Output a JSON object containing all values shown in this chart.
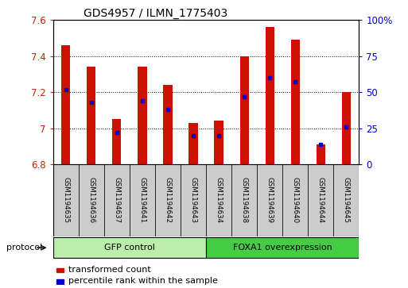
{
  "title": "GDS4957 / ILMN_1775403",
  "samples": [
    "GSM1194635",
    "GSM1194636",
    "GSM1194637",
    "GSM1194641",
    "GSM1194642",
    "GSM1194643",
    "GSM1194634",
    "GSM1194638",
    "GSM1194639",
    "GSM1194640",
    "GSM1194644",
    "GSM1194645"
  ],
  "transformed_count": [
    7.46,
    7.34,
    7.05,
    7.34,
    7.24,
    7.03,
    7.04,
    7.4,
    7.56,
    7.49,
    6.91,
    7.2
  ],
  "percentile_rank": [
    52,
    43,
    22,
    44,
    38,
    20,
    20,
    47,
    60,
    57,
    14,
    26
  ],
  "ylim_left": [
    6.8,
    7.6
  ],
  "ylim_right": [
    0,
    100
  ],
  "bar_color": "#cc1100",
  "marker_color": "#0000cc",
  "bar_width": 0.35,
  "groups": [
    {
      "label": "GFP control",
      "start": 0,
      "end": 6,
      "color": "#bbeeaa"
    },
    {
      "label": "FOXA1 overexpression",
      "start": 6,
      "end": 12,
      "color": "#44cc44"
    }
  ],
  "protocol_label": "protocol",
  "dotted_grid_color": "#000000",
  "background_color": "#ffffff",
  "plot_bg_color": "#ffffff",
  "tick_label_color_left": "#cc2200",
  "tick_label_color_right": "#0000cc",
  "legend_items": [
    "transformed count",
    "percentile rank within the sample"
  ],
  "yticks_left": [
    6.8,
    7.0,
    7.2,
    7.4,
    7.6
  ],
  "ytick_labels_left": [
    "6.8",
    "7",
    "7.2",
    "7.4",
    "7.6"
  ],
  "yticks_right": [
    0,
    25,
    50,
    75,
    100
  ],
  "ytick_labels_right": [
    "0",
    "25",
    "50",
    "75",
    "100%"
  ]
}
